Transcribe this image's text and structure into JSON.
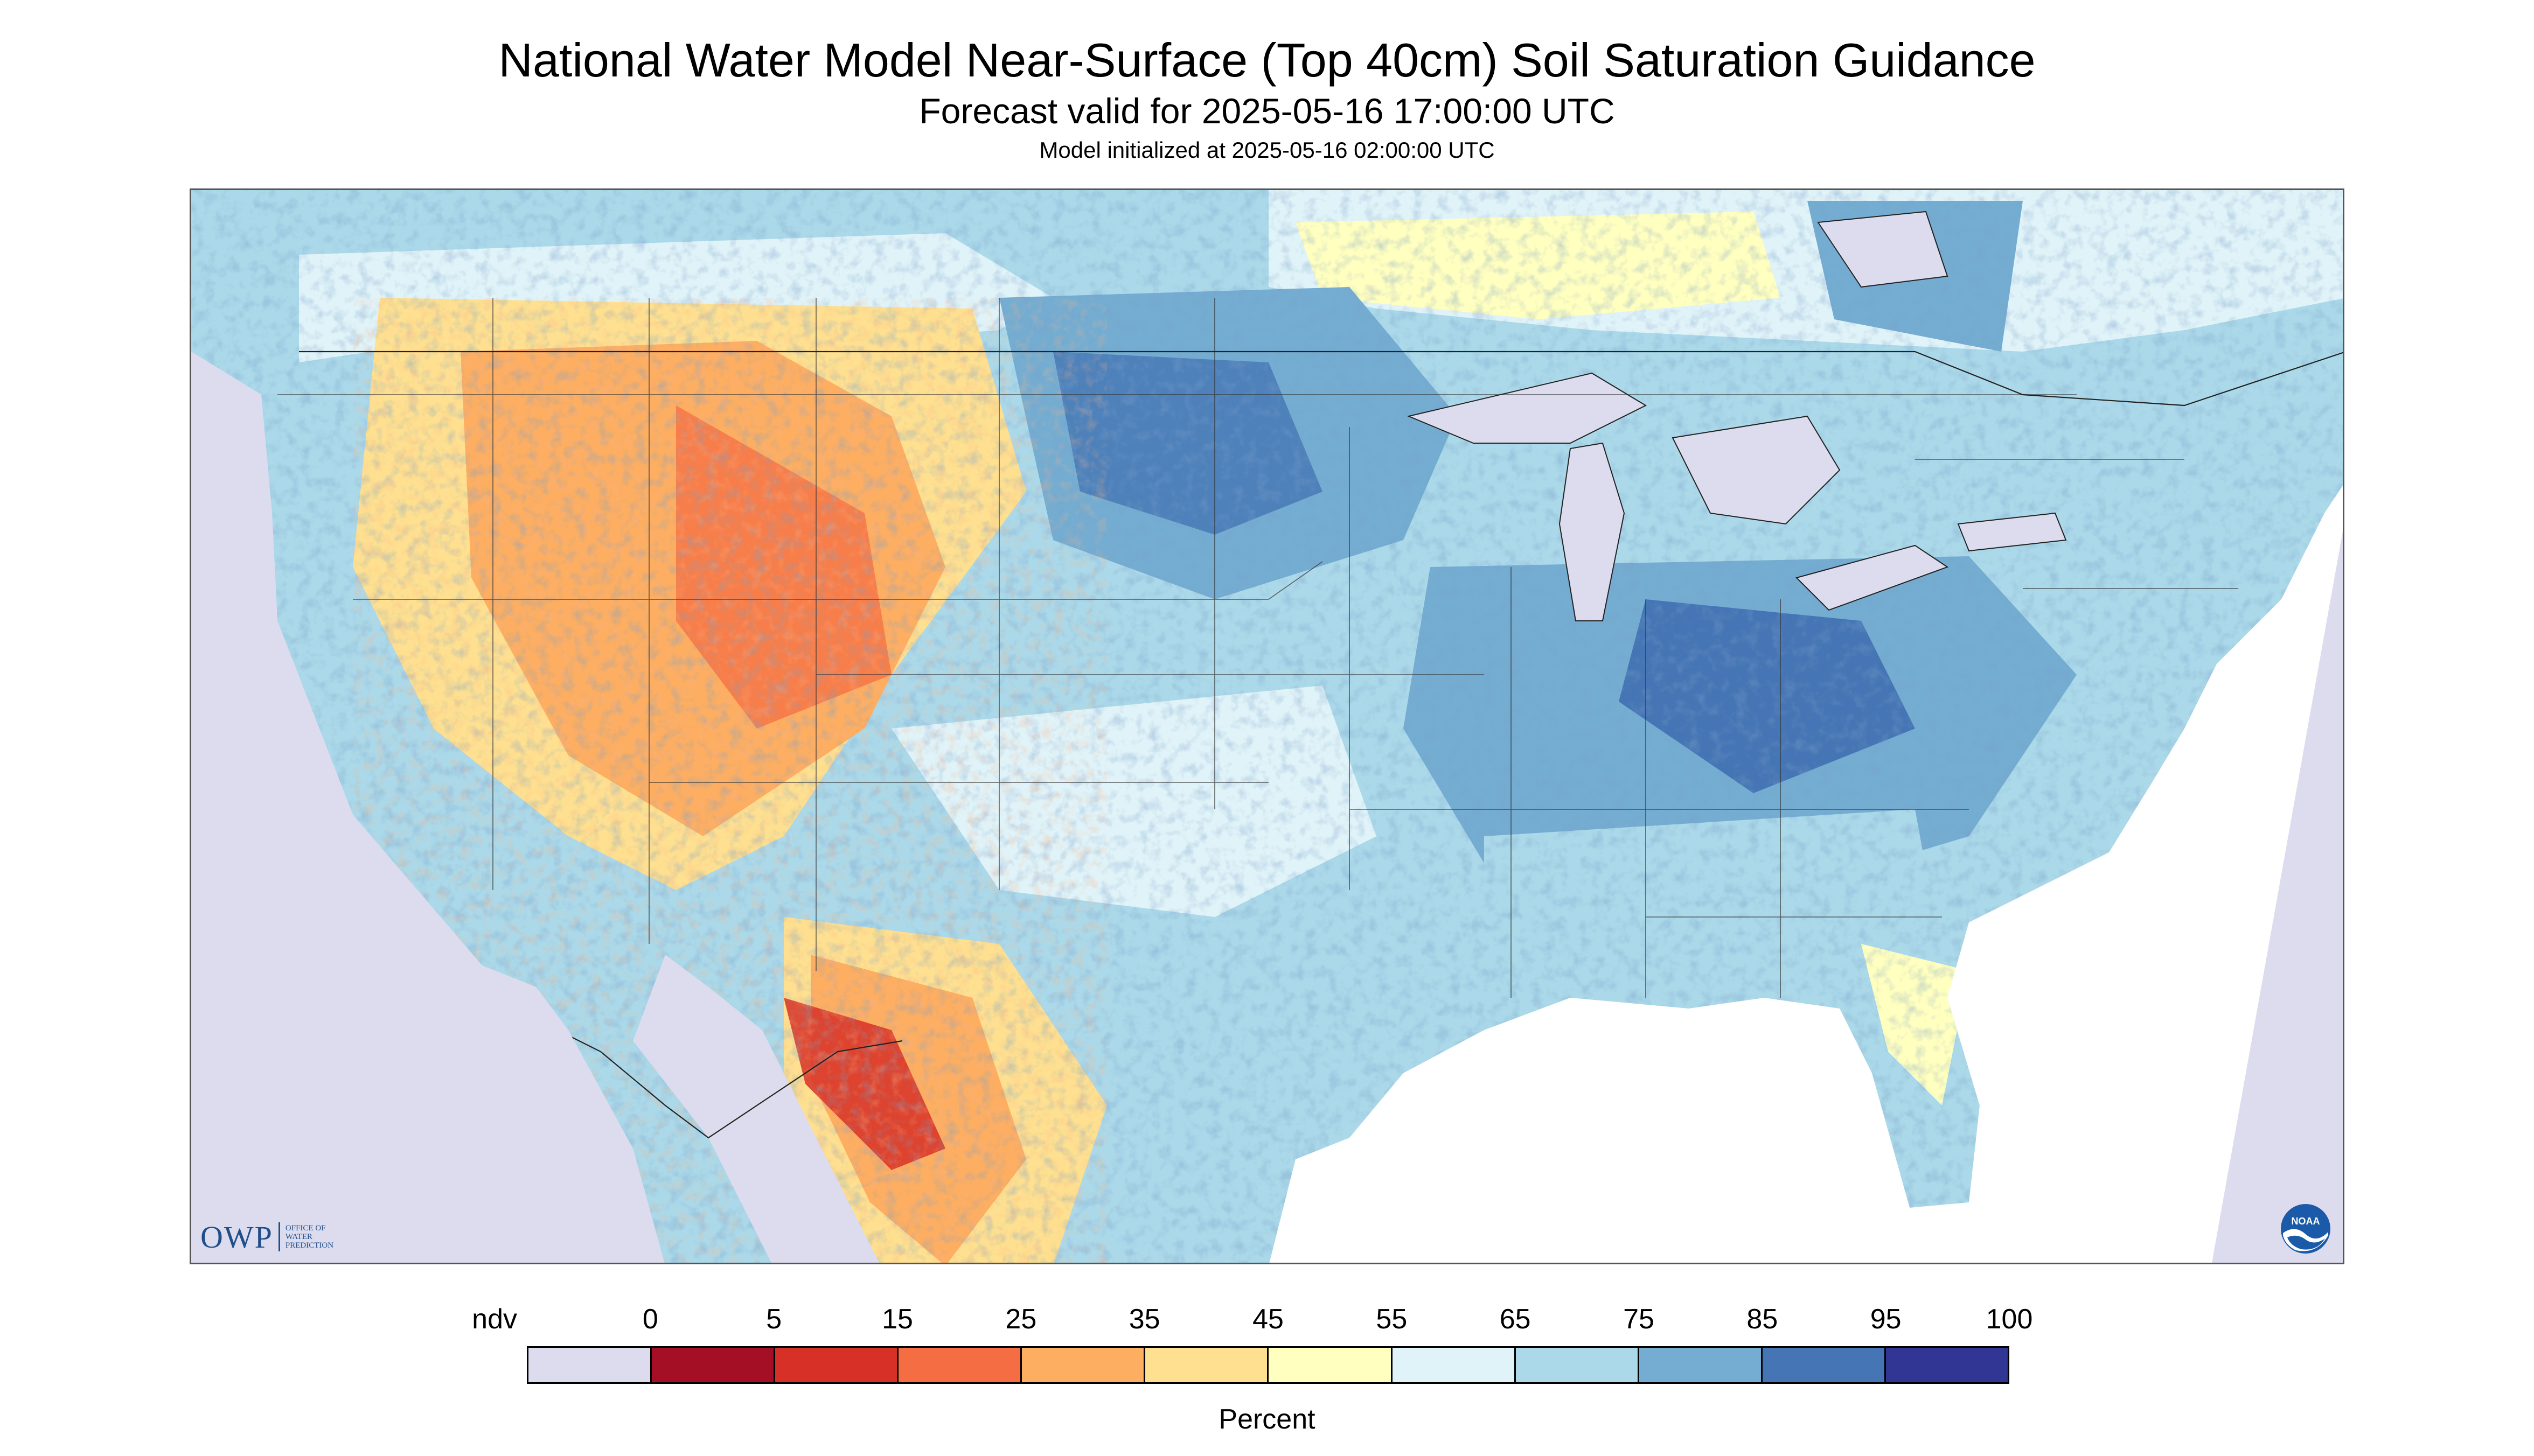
{
  "header": {
    "title": "National Water Model Near-Surface (Top 40cm) Soil Saturation Guidance",
    "subtitle": "Forecast valid for 2025-05-16 17:00:00 UTC",
    "init_line": "Model initialized at 2025-05-16 02:00:00 UTC"
  },
  "map": {
    "nodata_color": "#dcdcee",
    "water_color": "#dcdcee",
    "boundary_color": "#333333"
  },
  "logos": {
    "owp_mark": "OWP",
    "owp_line1": "OFFICE OF",
    "owp_line2": "WATER",
    "owp_line3": "PREDICTION",
    "noaa_text": "NOAA"
  },
  "legend": {
    "labels": [
      "ndv",
      "0",
      "5",
      "15",
      "25",
      "35",
      "45",
      "55",
      "65",
      "75",
      "85",
      "95",
      "100"
    ],
    "colors": [
      "#dcdcee",
      "#a50f26",
      "#d73027",
      "#f46d43",
      "#fdae61",
      "#fee090",
      "#ffffbf",
      "#e0f3f8",
      "#abd9e9",
      "#74add1",
      "#4575b4",
      "#313695"
    ],
    "unit": "Percent"
  }
}
